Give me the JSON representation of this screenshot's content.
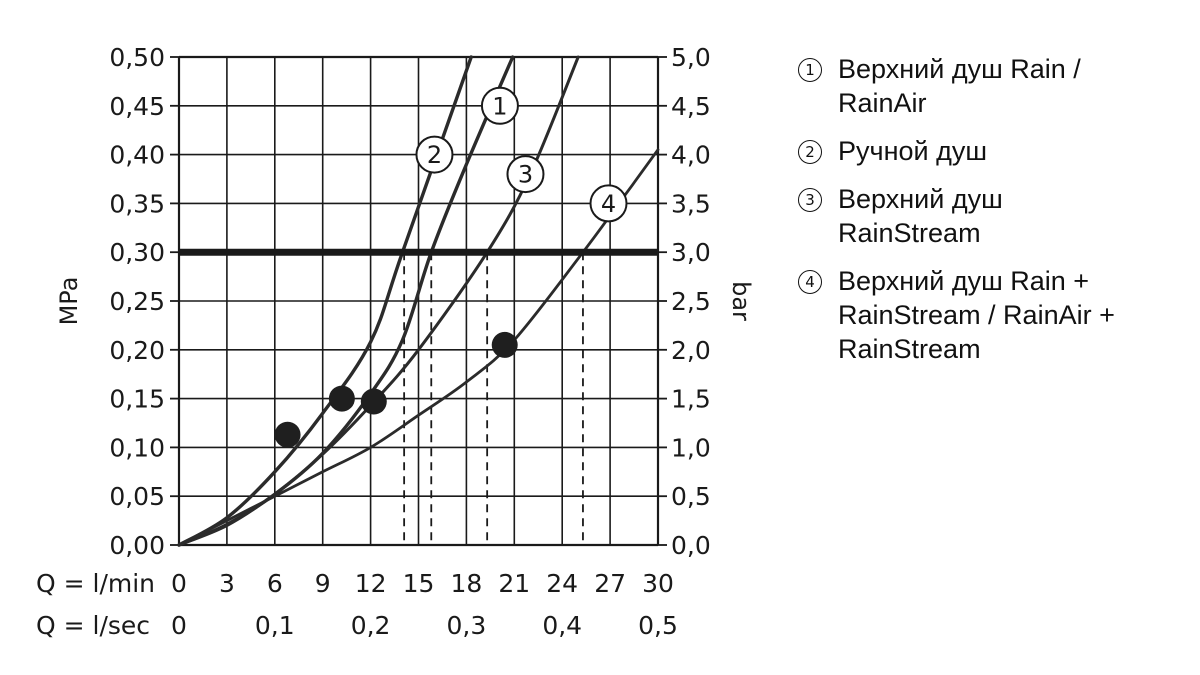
{
  "chart_data": {
    "type": "line",
    "x_unit_label": "Q = l/min",
    "x2_unit_label": "Q = l/sec",
    "x_ticks": [
      "0",
      "3",
      "6",
      "9",
      "12",
      "15",
      "18",
      "21",
      "24",
      "27",
      "30"
    ],
    "x2_ticks": [
      "0",
      "0,1",
      "0,2",
      "0,3",
      "0,4",
      "0,5"
    ],
    "ylabel_left": "MPa",
    "ylabel_right": "bar",
    "y_ticks_left": [
      "0,00",
      "0,05",
      "0,10",
      "0,15",
      "0,20",
      "0,25",
      "0,30",
      "0,35",
      "0,40",
      "0,45",
      "0,50"
    ],
    "y_ticks_right": [
      "0,0",
      "0,5",
      "1,0",
      "1,5",
      "2,0",
      "2,5",
      "3,0",
      "3,5",
      "4,0",
      "4,5",
      "5,0"
    ],
    "xlim": [
      0,
      30
    ],
    "ylim": [
      0,
      0.5
    ],
    "grid": true,
    "reference_line_y": 0.3,
    "series": [
      {
        "name": "① Верхний душ Rain / RainAir",
        "marker": "1",
        "x": [
          0,
          3,
          6,
          9,
          12,
          14,
          15.8,
          18,
          20.9
        ],
        "y": [
          0,
          0.021,
          0.052,
          0.094,
          0.155,
          0.21,
          0.3,
          0.39,
          0.5
        ],
        "point": [
          10.2,
          0.15
        ],
        "marker_at": [
          20.1,
          0.45
        ]
      },
      {
        "name": "② Ручной душ",
        "marker": "2",
        "x": [
          0,
          3,
          6,
          9,
          12,
          14,
          18.3
        ],
        "y": [
          0,
          0.028,
          0.075,
          0.135,
          0.208,
          0.3,
          0.5
        ],
        "point": [
          6.8,
          0.113
        ],
        "marker_at": [
          16.0,
          0.4
        ]
      },
      {
        "name": "③ Верхний душ RainStream",
        "marker": "3",
        "x": [
          0,
          3,
          6,
          9,
          12,
          15,
          19.3,
          22,
          25
        ],
        "y": [
          0,
          0.02,
          0.052,
          0.093,
          0.143,
          0.2,
          0.3,
          0.38,
          0.5
        ],
        "point": [
          12.2,
          0.147
        ],
        "marker_at": [
          21.7,
          0.38
        ]
      },
      {
        "name": "④ Верхний душ Rain + RainStream / RainAir + RainStream",
        "marker": "4",
        "x": [
          0,
          3,
          6,
          9,
          12,
          15,
          18,
          21,
          25.3,
          28,
          30
        ],
        "y": [
          0,
          0.025,
          0.05,
          0.075,
          0.1,
          0.133,
          0.167,
          0.21,
          0.3,
          0.36,
          0.405
        ],
        "point": [
          20.4,
          0.205
        ],
        "marker_at": [
          26.9,
          0.35
        ]
      }
    ],
    "dashed_x": [
      14.1,
      15.8,
      19.3,
      25.3
    ]
  },
  "legend": {
    "items": [
      {
        "num": "1",
        "text": "Верхний душ Rain / RainAir"
      },
      {
        "num": "2",
        "text": "Ручной душ"
      },
      {
        "num": "3",
        "text": "Верхний душ RainStream"
      },
      {
        "num": "4",
        "text": "Верхний душ Rain + RainStream / RainAir + RainStream"
      }
    ]
  }
}
